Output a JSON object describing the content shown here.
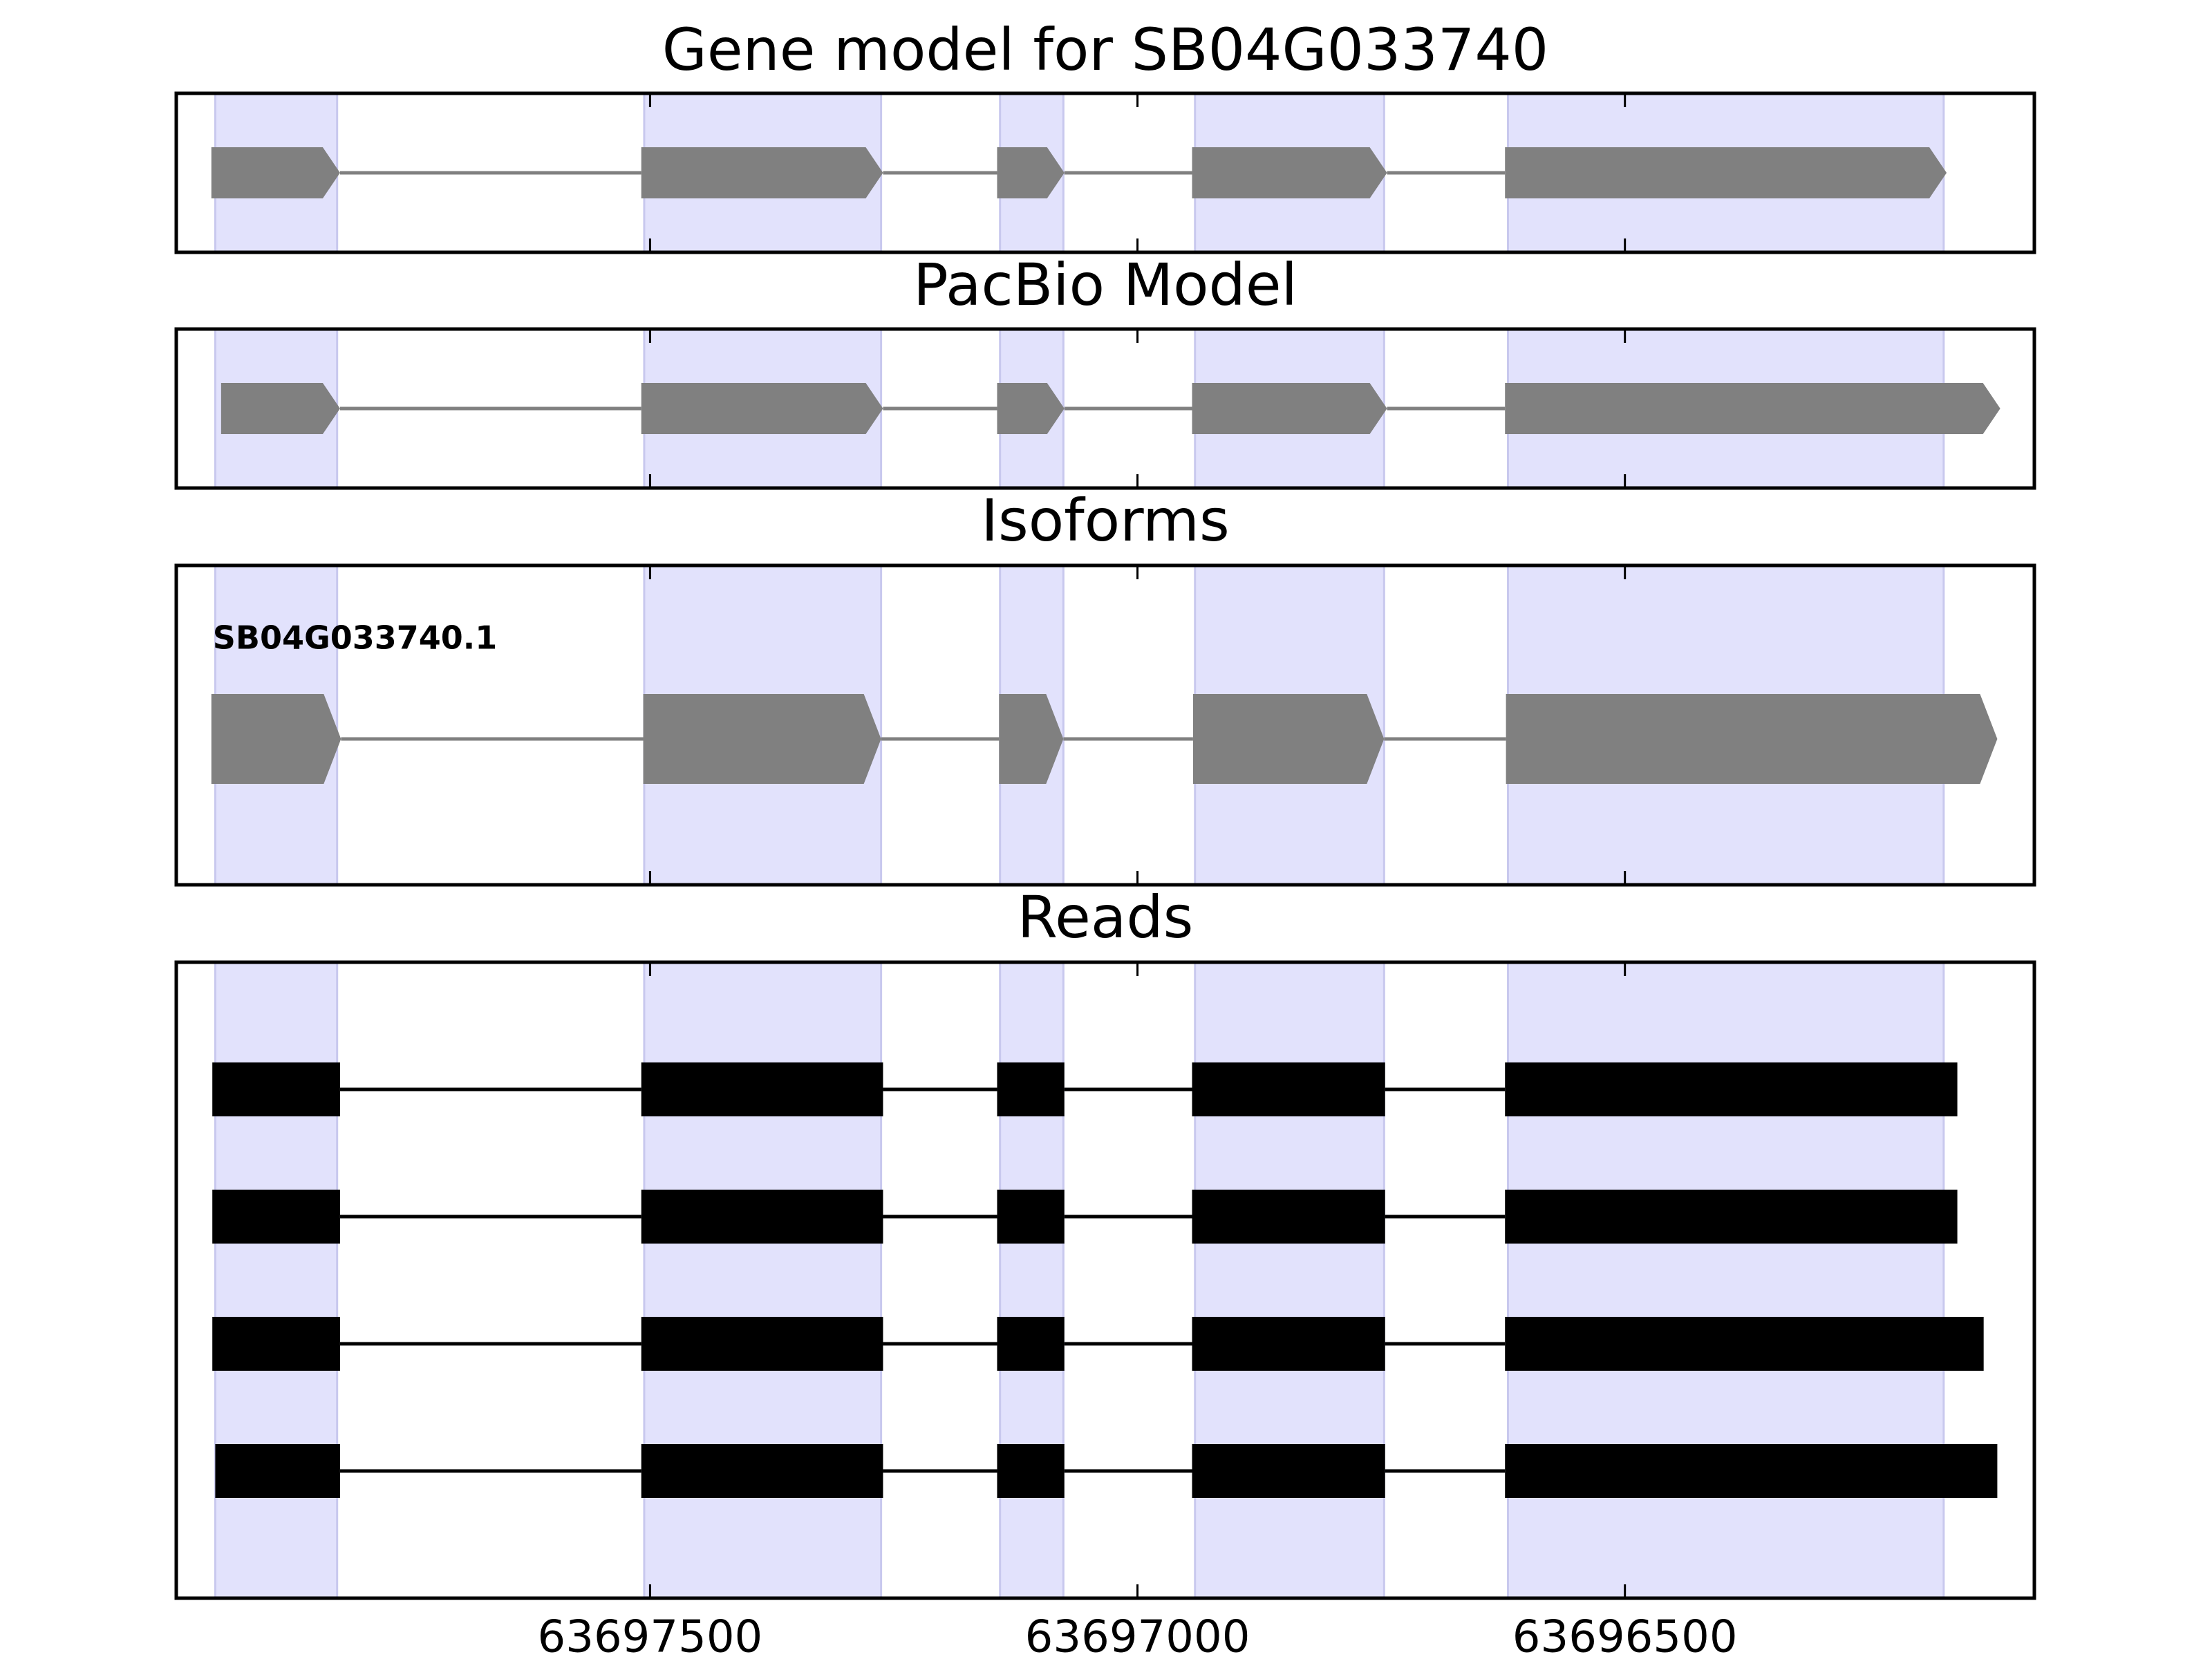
{
  "chart_data": [
    {
      "type": "gene",
      "title": "Gene model for SB04G033740",
      "color": "#808080",
      "highlight_color": "#e2e2fc",
      "xlim": [
        63697986,
        63696080
      ],
      "xticks": [
        63697500,
        63697000,
        63696500
      ],
      "highlights": [
        [
          63697946,
          63697821
        ],
        [
          63697506,
          63697263
        ],
        [
          63697141,
          63697076
        ],
        [
          63696941,
          63696747
        ],
        [
          63696620,
          63696173
        ]
      ],
      "transcripts": [
        {
          "exons": [
            [
              63697950,
              63697818
            ],
            [
              63697509,
              63697261
            ],
            [
              63697144,
              63697075
            ],
            [
              63696944,
              63696744
            ],
            [
              63696623,
              63696170
            ]
          ]
        }
      ]
    },
    {
      "type": "gene",
      "title": "PacBio Model",
      "color": "#808080",
      "highlight_color": "#e2e2fc",
      "xlim": [
        63697986,
        63696080
      ],
      "xticks": [
        63697500,
        63697000,
        63696500
      ],
      "highlights": [
        [
          63697946,
          63697821
        ],
        [
          63697506,
          63697263
        ],
        [
          63697141,
          63697076
        ],
        [
          63696941,
          63696747
        ],
        [
          63696620,
          63696173
        ]
      ],
      "transcripts": [
        {
          "exons": [
            [
              63697940,
              63697818
            ],
            [
              63697509,
              63697261
            ],
            [
              63697144,
              63697075
            ],
            [
              63696944,
              63696744
            ],
            [
              63696623,
              63696115
            ]
          ]
        }
      ]
    },
    {
      "type": "gene",
      "title": "Isoforms",
      "color": "#808080",
      "highlight_color": "#e2e2fc",
      "xlim": [
        63697986,
        63696080
      ],
      "xticks": [
        63697500,
        63697000,
        63696500
      ],
      "highlights": [
        [
          63697946,
          63697821
        ],
        [
          63697506,
          63697263
        ],
        [
          63697141,
          63697076
        ],
        [
          63696941,
          63696747
        ],
        [
          63696620,
          63696173
        ]
      ],
      "transcripts": [
        {
          "name": "SB04G033740.1",
          "exons": [
            [
              63697950,
              63697817
            ],
            [
              63697507,
              63697263
            ],
            [
              63697142,
              63697076
            ],
            [
              63696943,
              63696747
            ],
            [
              63696622,
              63696118
            ]
          ]
        }
      ]
    },
    {
      "type": "reads",
      "title": "Reads",
      "color": "#000000",
      "highlight_color": "#e2e2fc",
      "xlim": [
        63697986,
        63696080
      ],
      "xticks": [
        63697500,
        63697000,
        63696500
      ],
      "highlights": [
        [
          63697946,
          63697821
        ],
        [
          63697506,
          63697263
        ],
        [
          63697141,
          63697076
        ],
        [
          63696941,
          63696747
        ],
        [
          63696620,
          63696173
        ]
      ],
      "transcripts": [
        {
          "exons": [
            [
              63697949,
              63697818
            ],
            [
              63697509,
              63697261
            ],
            [
              63697144,
              63697075
            ],
            [
              63696944,
              63696746
            ],
            [
              63696623,
              63696159
            ]
          ]
        },
        {
          "exons": [
            [
              63697949,
              63697818
            ],
            [
              63697509,
              63697261
            ],
            [
              63697144,
              63697075
            ],
            [
              63696944,
              63696746
            ],
            [
              63696623,
              63696159
            ]
          ]
        },
        {
          "exons": [
            [
              63697949,
              63697818
            ],
            [
              63697509,
              63697261
            ],
            [
              63697144,
              63697075
            ],
            [
              63696944,
              63696746
            ],
            [
              63696623,
              63696132
            ]
          ]
        },
        {
          "exons": [
            [
              63697946,
              63697818
            ],
            [
              63697509,
              63697261
            ],
            [
              63697144,
              63697075
            ],
            [
              63696944,
              63696746
            ],
            [
              63696623,
              63696118
            ]
          ]
        }
      ]
    }
  ]
}
